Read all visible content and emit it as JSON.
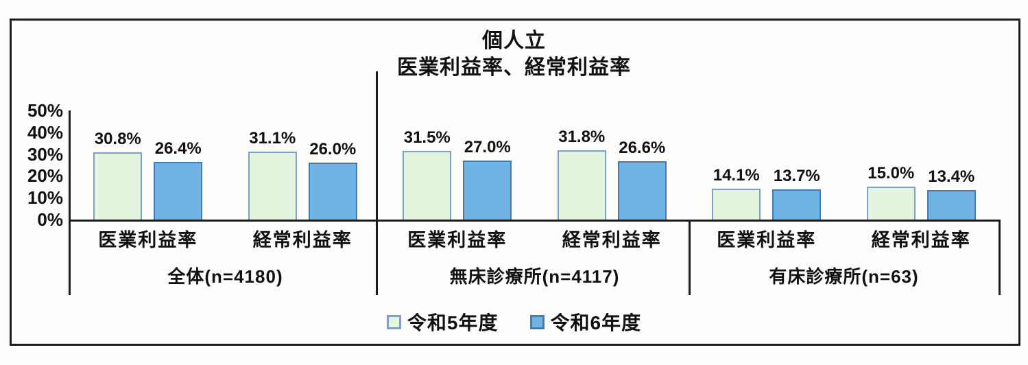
{
  "title": {
    "line1": "個人立",
    "line2": "医業利益率、経常利益率"
  },
  "colors": {
    "series1_fill": "#e3f4df",
    "series1_border": "#7f9ec9",
    "series2_fill": "#6fb4e4",
    "series2_border": "#4a79ae",
    "axis_line": "#1c1c1c"
  },
  "y_axis": {
    "ticks": [
      {
        "label": "50%",
        "value": 50
      },
      {
        "label": "40%",
        "value": 40
      },
      {
        "label": "30%",
        "value": 30
      },
      {
        "label": "20%",
        "value": 20
      },
      {
        "label": "10%",
        "value": 10
      },
      {
        "label": "0%",
        "value": 0
      }
    ]
  },
  "legend": {
    "items": [
      {
        "label": "令和5年度",
        "series": 0
      },
      {
        "label": "令和6年度",
        "series": 1
      }
    ]
  },
  "chart_data": {
    "type": "bar",
    "title": "個人立",
    "subtitle": "医業利益率、経常利益率",
    "ylim": [
      0,
      50
    ],
    "y_tick_interval": 10,
    "grid": false,
    "legend_position": "bottom",
    "value_label_format": "{value}%",
    "series_names": [
      "令和5年度",
      "令和6年度"
    ],
    "groups": [
      {
        "label": "全体(n=4180)",
        "categories": [
          {
            "label": "医業利益率",
            "values": [
              30.8,
              26.4
            ]
          },
          {
            "label": "経常利益率",
            "values": [
              31.1,
              26.0
            ]
          }
        ]
      },
      {
        "label": "無床診療所(n=4117)",
        "categories": [
          {
            "label": "医業利益率",
            "values": [
              31.5,
              27.0
            ]
          },
          {
            "label": "経常利益率",
            "values": [
              31.8,
              26.6
            ]
          }
        ]
      },
      {
        "label": "有床診療所(n=63)",
        "categories": [
          {
            "label": "医業利益率",
            "values": [
              14.1,
              13.7
            ]
          },
          {
            "label": "経常利益率",
            "values": [
              15.0,
              13.4
            ]
          }
        ]
      }
    ]
  }
}
